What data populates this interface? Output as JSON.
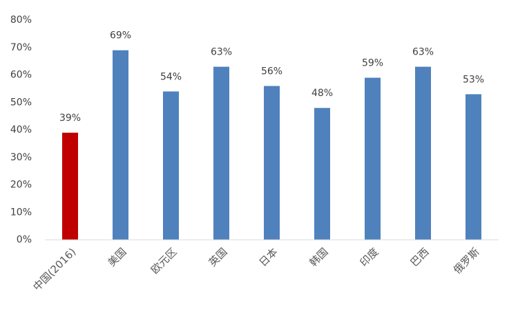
{
  "chart_data": {
    "type": "bar",
    "categories": [
      "中国(2016)",
      "美国",
      "欧元区",
      "英国",
      "日本",
      "韩国",
      "印度",
      "巴西",
      "俄罗斯"
    ],
    "values": [
      39,
      69,
      54,
      63,
      56,
      48,
      59,
      63,
      53
    ],
    "value_labels": [
      "39%",
      "69%",
      "54%",
      "63%",
      "56%",
      "48%",
      "59%",
      "63%",
      "53%"
    ],
    "colors": [
      "#c00000",
      "#4f81bd",
      "#4f81bd",
      "#4f81bd",
      "#4f81bd",
      "#4f81bd",
      "#4f81bd",
      "#4f81bd",
      "#4f81bd"
    ],
    "ylim": [
      0,
      80
    ],
    "yticks": [
      {
        "value": 0,
        "label": "0%"
      },
      {
        "value": 10,
        "label": "10%"
      },
      {
        "value": 20,
        "label": "20%"
      },
      {
        "value": 30,
        "label": "30%"
      },
      {
        "value": 40,
        "label": "40%"
      },
      {
        "value": 50,
        "label": "50%"
      },
      {
        "value": 60,
        "label": "60%"
      },
      {
        "value": 70,
        "label": "70%"
      },
      {
        "value": 80,
        "label": "80%"
      }
    ],
    "grid": false
  }
}
